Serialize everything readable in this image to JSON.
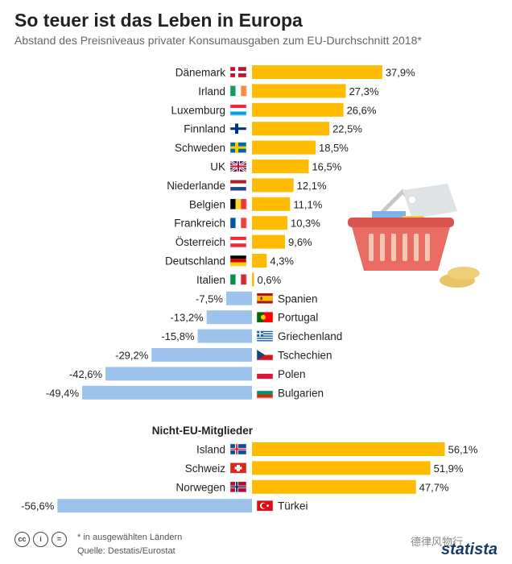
{
  "header": {
    "title": "So teuer ist das Leben in Europa",
    "subtitle": "Abstand des Preisniveaus privater Konsumausgaben zum EU-Durchschnitt 2018*"
  },
  "chart_data": {
    "type": "bar",
    "orientation": "horizontal",
    "unit": "%",
    "sections": [
      {
        "name": "",
        "rows": [
          {
            "country": "Dänemark",
            "value": 37.9,
            "label": "37,9%",
            "flag": "denmark"
          },
          {
            "country": "Irland",
            "value": 27.3,
            "label": "27,3%",
            "flag": "ireland"
          },
          {
            "country": "Luxemburg",
            "value": 26.6,
            "label": "26,6%",
            "flag": "luxembourg"
          },
          {
            "country": "Finnland",
            "value": 22.5,
            "label": "22,5%",
            "flag": "finland"
          },
          {
            "country": "Schweden",
            "value": 18.5,
            "label": "18,5%",
            "flag": "sweden"
          },
          {
            "country": "UK",
            "value": 16.5,
            "label": "16,5%",
            "flag": "uk"
          },
          {
            "country": "Niederlande",
            "value": 12.1,
            "label": "12,1%",
            "flag": "netherlands"
          },
          {
            "country": "Belgien",
            "value": 11.1,
            "label": "11,1%",
            "flag": "belgium"
          },
          {
            "country": "Frankreich",
            "value": 10.3,
            "label": "10,3%",
            "flag": "france"
          },
          {
            "country": "Österreich",
            "value": 9.6,
            "label": "9,6%",
            "flag": "austria"
          },
          {
            "country": "Deutschland",
            "value": 4.3,
            "label": "4,3%",
            "flag": "germany"
          },
          {
            "country": "Italien",
            "value": 0.6,
            "label": "0,6%",
            "flag": "italy"
          },
          {
            "country": "Spanien",
            "value": -7.5,
            "label": "-7,5%",
            "flag": "spain"
          },
          {
            "country": "Portugal",
            "value": -13.2,
            "label": "-13,2%",
            "flag": "portugal"
          },
          {
            "country": "Griechenland",
            "value": -15.8,
            "label": "-15,8%",
            "flag": "greece"
          },
          {
            "country": "Tschechien",
            "value": -29.2,
            "label": "-29,2%",
            "flag": "czechia"
          },
          {
            "country": "Polen",
            "value": -42.6,
            "label": "-42,6%",
            "flag": "poland"
          },
          {
            "country": "Bulgarien",
            "value": -49.4,
            "label": "-49,4%",
            "flag": "bulgaria"
          }
        ]
      },
      {
        "name": "Nicht-EU-Mitglieder",
        "rows": [
          {
            "country": "Island",
            "value": 56.1,
            "label": "56,1%",
            "flag": "iceland"
          },
          {
            "country": "Schweiz",
            "value": 51.9,
            "label": "51,9%",
            "flag": "switzerland"
          },
          {
            "country": "Norwegen",
            "value": 47.7,
            "label": "47,7%",
            "flag": "norway"
          },
          {
            "country": "Türkei",
            "value": -56.6,
            "label": "-56,6%",
            "flag": "turkey"
          }
        ]
      }
    ],
    "colors": {
      "positive": "#FFBB00",
      "negative": "#9DC3EC"
    }
  },
  "footer": {
    "note": "* in ausgewählten Ländern",
    "source": "Quelle: Destatis/Eurostat",
    "brand": "statista",
    "watermark": "德律风物行",
    "cc_icons": [
      "cc",
      "i",
      "="
    ]
  }
}
